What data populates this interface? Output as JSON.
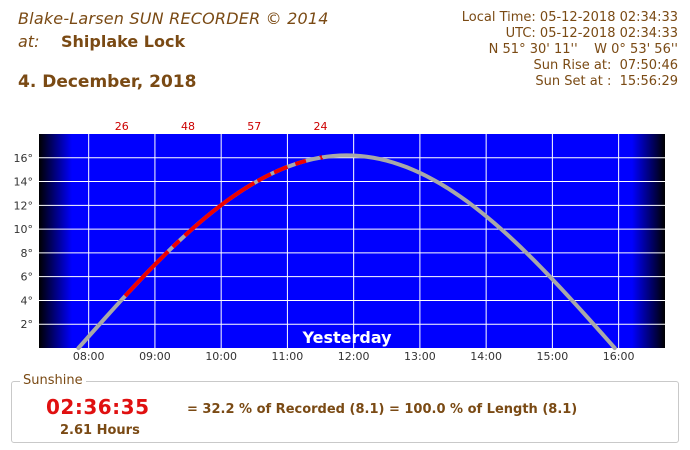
{
  "header": {
    "brand": "Blake-Larsen SUN RECORDER © 2014",
    "location_prefix": "at:",
    "location_name": "Shiplake Lock",
    "date": "4. December, 2018"
  },
  "info": {
    "local_time": "Local Time: 05-12-2018 02:34:33",
    "utc_time": "UTC: 05-12-2018 02:34:33",
    "coordinates": "N 51° 30' 11''    W 0° 53' 56''",
    "sun_rise": "Sun Rise at:  07:50:46",
    "sun_set": "Sun Set at :  15:56:29"
  },
  "chart_data": {
    "type": "line",
    "title": "",
    "day_label": "Yesterday",
    "x_unit": "hours",
    "xlim": [
      7.25,
      16.7
    ],
    "ylim": [
      0,
      18
    ],
    "x_ticks": [
      {
        "value": 8,
        "label": "08:00"
      },
      {
        "value": 9,
        "label": "09:00"
      },
      {
        "value": 10,
        "label": "10:00"
      },
      {
        "value": 11,
        "label": "11:00"
      },
      {
        "value": 12,
        "label": "12:00"
      },
      {
        "value": 13,
        "label": "13:00"
      },
      {
        "value": 14,
        "label": "14:00"
      },
      {
        "value": 15,
        "label": "15:00"
      },
      {
        "value": 16,
        "label": "16:00"
      }
    ],
    "y_ticks": [
      {
        "value": 2,
        "label": "2°"
      },
      {
        "value": 4,
        "label": "4°"
      },
      {
        "value": 6,
        "label": "6°"
      },
      {
        "value": 8,
        "label": "8°"
      },
      {
        "value": 10,
        "label": "10°"
      },
      {
        "value": 12,
        "label": "12°"
      },
      {
        "value": 14,
        "label": "14°"
      },
      {
        "value": 16,
        "label": "16°"
      }
    ],
    "sun_altitude": {
      "sunrise_hour": 7.846,
      "sunset_hour": 15.941,
      "max_altitude_deg": 16.2
    },
    "sunshine_intervals": [
      [
        8.55,
        9.2
      ],
      [
        9.27,
        9.37
      ],
      [
        9.45,
        10.5
      ],
      [
        10.55,
        10.75
      ],
      [
        10.8,
        11.0
      ],
      [
        11.12,
        11.28
      ],
      [
        11.5,
        11.52
      ]
    ],
    "hourly_counts": [
      {
        "hour": 8.5,
        "count": "26"
      },
      {
        "hour": 9.5,
        "count": "48"
      },
      {
        "hour": 10.5,
        "count": "57"
      },
      {
        "hour": 11.5,
        "count": "24"
      }
    ],
    "grid": true,
    "colors": {
      "sky": "#0000ff",
      "night": "#000000",
      "sun_path": "#a8a8a8",
      "sunshine": "#ee0000",
      "grid": "#ffffff"
    }
  },
  "sunshine": {
    "title": "Sunshine",
    "duration": "02:36:35",
    "hours": "2.61 Hours",
    "summary": "= 32.2 % of Recorded (8.1) = 100.0 % of Length (8.1)"
  }
}
